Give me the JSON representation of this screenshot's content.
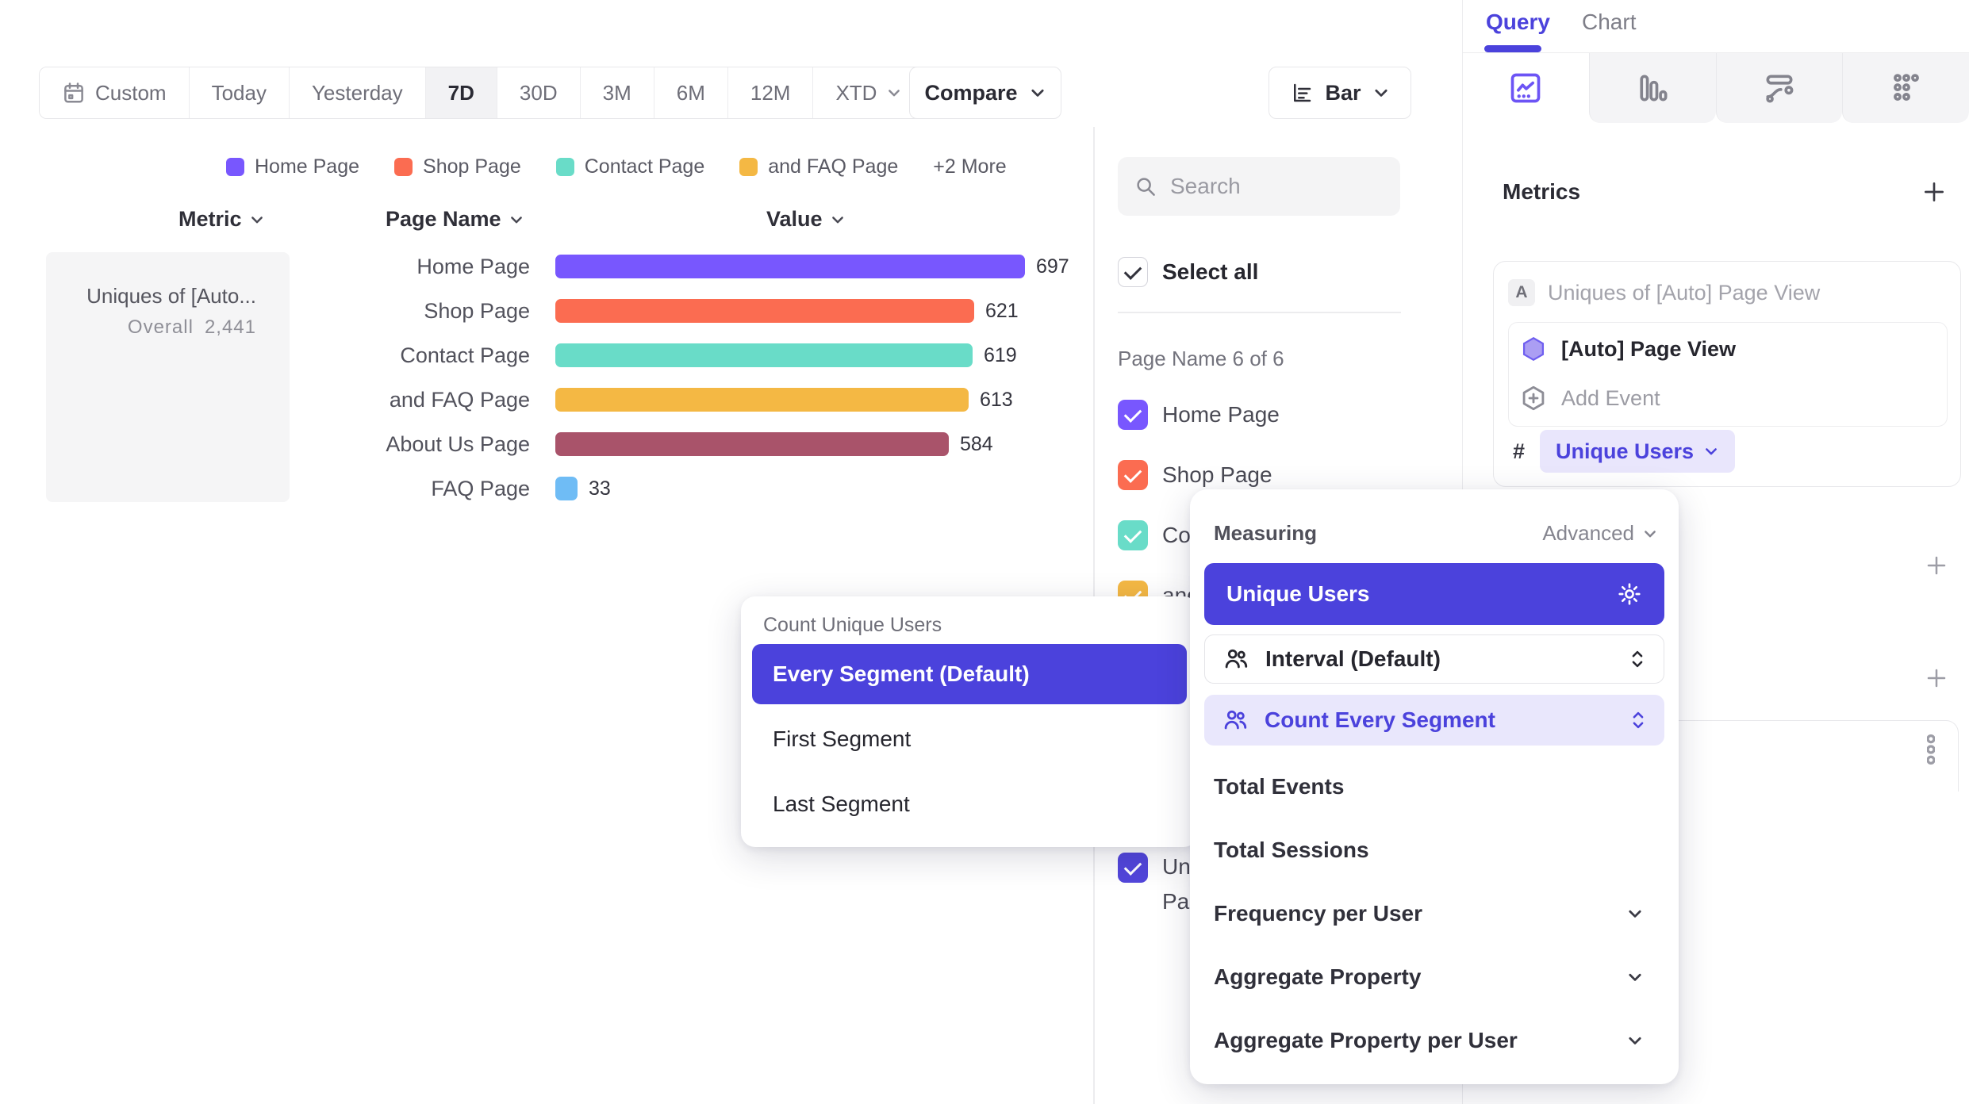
{
  "colors": {
    "primary": "#4B42DC",
    "accent": "#7857FE",
    "pill_bg": "#E9E6FC",
    "row_highlight": "#E9E7FC"
  },
  "toolbar": {
    "date_ranges": [
      {
        "label": "Custom",
        "icon": "calendar-icon",
        "active": false,
        "chevron": false
      },
      {
        "label": "Today",
        "active": false,
        "chevron": false
      },
      {
        "label": "Yesterday",
        "active": false,
        "chevron": false
      },
      {
        "label": "7D",
        "active": true,
        "chevron": false
      },
      {
        "label": "30D",
        "active": false,
        "chevron": false
      },
      {
        "label": "3M",
        "active": false,
        "chevron": false
      },
      {
        "label": "6M",
        "active": false,
        "chevron": false
      },
      {
        "label": "12M",
        "active": false,
        "chevron": false
      },
      {
        "label": "XTD",
        "active": false,
        "chevron": true
      }
    ],
    "compare_label": "Compare",
    "chart_type_label": "Bar"
  },
  "legend": {
    "items": [
      {
        "label": "Home Page",
        "color": "#7857FE"
      },
      {
        "label": "Shop Page",
        "color": "#FB6C51"
      },
      {
        "label": "Contact Page",
        "color": "#69DCC8"
      },
      {
        "label": "and FAQ Page",
        "color": "#F4B844"
      }
    ],
    "more_label": "+2 More"
  },
  "table": {
    "headers": {
      "metric": "Metric",
      "page_name": "Page Name",
      "value": "Value"
    },
    "metric_cell": {
      "title": "Uniques of [Auto...",
      "overall_label": "Overall",
      "overall_value": "2,441"
    },
    "rows": [
      {
        "label": "Home Page",
        "value": 697,
        "color": "#7857FE"
      },
      {
        "label": "Shop Page",
        "value": 621,
        "color": "#FB6C51"
      },
      {
        "label": "Contact Page",
        "value": 619,
        "color": "#69DCC8"
      },
      {
        "label": "and FAQ Page",
        "value": 613,
        "color": "#F4B844"
      },
      {
        "label": "About Us Page",
        "value": 584,
        "color": "#A9536A"
      },
      {
        "label": "FAQ Page",
        "value": 33,
        "color": "#6FBCF5"
      }
    ]
  },
  "segment_panel": {
    "search_placeholder": "Search",
    "select_all_label": "Select all",
    "group_label": "Page Name 6 of 6",
    "items": [
      {
        "label": "Home Page",
        "color": "#7857FE",
        "checked": true
      },
      {
        "label": "Shop Page",
        "color": "#FB6C51",
        "checked": true
      },
      {
        "label": "Contact Page",
        "color": "#69DCC8",
        "checked": true
      },
      {
        "label": "and FAQ Page",
        "color": "#F4B844",
        "checked": true
      },
      {
        "label": "About Us Page",
        "color": "#A9536A",
        "checked": true
      },
      {
        "label": "FAQ Page",
        "color": "#6FBCF5",
        "checked": true
      }
    ],
    "extra_item": {
      "label": "Uniques of [Auto] Page View",
      "color": "#5246DB",
      "checked": true
    }
  },
  "query_panel": {
    "tabs": {
      "query": "Query",
      "chart": "Chart"
    },
    "metrics_heading": "Metrics",
    "metric_card": {
      "badge": "A",
      "title": "Uniques of [Auto] Page View",
      "event_label": "[Auto] Page View",
      "add_event_label": "Add Event",
      "count_symbol": "#",
      "measure_pill_label": "Unique Users"
    }
  },
  "count_menu": {
    "title": "Count Unique Users",
    "options": [
      "Every Segment (Default)",
      "First Segment",
      "Last Segment"
    ],
    "selected_index": 0
  },
  "measuring_menu": {
    "title": "Measuring",
    "advanced_label": "Advanced",
    "selected_label": "Unique Users",
    "interval_label": "Interval (Default)",
    "count_segment_label": "Count Every Segment",
    "items": [
      {
        "label": "Total Events",
        "expandable": false
      },
      {
        "label": "Total Sessions",
        "expandable": false
      },
      {
        "label": "Frequency per User",
        "expandable": true
      },
      {
        "label": "Aggregate Property",
        "expandable": true
      },
      {
        "label": "Aggregate Property per User",
        "expandable": true
      }
    ]
  },
  "chart_data": {
    "type": "bar",
    "orientation": "horizontal",
    "title": "Uniques of [Auto] Page View",
    "overall_total": 2441,
    "categories": [
      "Home Page",
      "Shop Page",
      "Contact Page",
      "and FAQ Page",
      "About Us Page",
      "FAQ Page"
    ],
    "values": [
      697,
      621,
      619,
      613,
      584,
      33
    ],
    "colors": [
      "#7857FE",
      "#FB6C51",
      "#69DCC8",
      "#F4B844",
      "#A9536A",
      "#6FBCF5"
    ],
    "xlabel": "Value",
    "ylabel": "Page Name",
    "xlim": [
      0,
      700
    ],
    "legend_position": "top"
  }
}
